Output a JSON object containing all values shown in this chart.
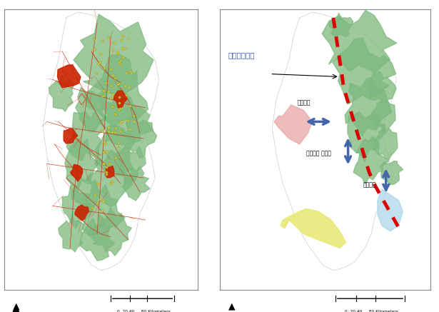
{
  "figure_width": 6.15,
  "figure_height": 4.37,
  "dpi": 100,
  "bg_color": "#ffffff",
  "border_color": "#888888",
  "border_linewidth": 0.8,
  "korea_outline_color": "#cccccc",
  "korea_fill_color": "#ffffff",
  "forest_green": "#7db87d",
  "road_red": "#cc2200",
  "dot_yellow": "#d4cc44",
  "dot_edge": "#888800",
  "pink_region": "#e8a0a0",
  "yellow_region": "#e8e870",
  "blue_region": "#a8d4e8",
  "dashed_red": "#dd0000",
  "arrow_blue": "#4466aa",
  "label_gyeongbu": "경부고속도로",
  "label_geubokgyeong": "근복경역",
  "label_baekdudaegan": "백두대간 주봉명",
  "label_nakdong": "낙등중역",
  "scale_text": "0  20 40     80 Kilometers",
  "font_color_blue": "#3355aa",
  "font_color_black": "#000000"
}
